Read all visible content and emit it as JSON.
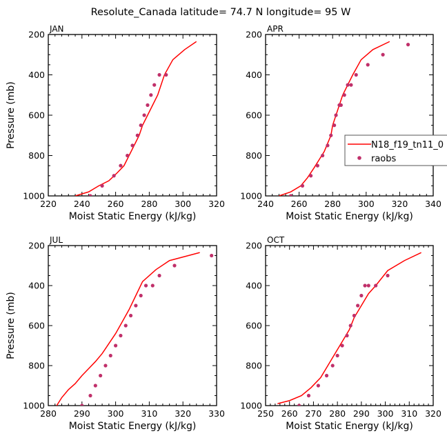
{
  "title": "Resolute_Canada   latitude= 74.7 N longitude= 95 W",
  "legend": {
    "model_label": "N18_f19_tn11_0",
    "obs_label": "raobs"
  },
  "colors": {
    "model_line": "#ff0000",
    "obs_marker": "#c0306a",
    "axis": "#000000",
    "background": "#ffffff"
  },
  "chart_data": [
    {
      "type": "line",
      "panel": "JAN",
      "xlabel": "Moist Static Energy (kJ/kg)",
      "ylabel": "Pressure (mb)",
      "xlim": [
        220,
        320
      ],
      "ylim": [
        1000,
        200
      ],
      "xticks": [
        220,
        240,
        260,
        280,
        300,
        320
      ],
      "yticks": [
        200,
        400,
        600,
        800,
        1000
      ],
      "series": [
        {
          "name": "N18_f19_tn11_0",
          "kind": "line",
          "x": [
            236,
            244,
            250,
            256,
            261,
            265,
            268,
            271,
            274,
            276,
            279,
            282,
            285,
            289,
            294,
            301,
            308
          ],
          "y": [
            1000,
            980,
            950,
            925,
            885,
            850,
            800,
            750,
            700,
            650,
            600,
            550,
            500,
            400,
            325,
            275,
            235
          ]
        },
        {
          "name": "raobs",
          "kind": "scatter",
          "x": [
            245,
            252,
            259,
            263,
            267,
            270,
            273,
            275,
            277,
            279,
            281,
            283,
            286,
            290
          ],
          "y": [
            1000,
            950,
            900,
            850,
            800,
            750,
            700,
            650,
            600,
            550,
            500,
            450,
            400,
            400
          ]
        }
      ]
    },
    {
      "type": "line",
      "panel": "APR",
      "xlabel": "Moist Static Energy (kJ/kg)",
      "ylabel": "Pressure (mb)",
      "xlim": [
        240,
        340
      ],
      "ylim": [
        1000,
        200
      ],
      "xticks": [
        240,
        260,
        280,
        300,
        320,
        340
      ],
      "yticks": [
        200,
        400,
        600,
        800,
        1000
      ],
      "series": [
        {
          "name": "N18_f19_tn11_0",
          "kind": "line",
          "x": [
            248,
            255,
            261,
            265,
            269,
            272,
            275,
            277,
            279,
            280,
            282,
            284,
            286,
            289,
            292,
            297,
            304,
            314
          ],
          "y": [
            1000,
            980,
            950,
            910,
            860,
            820,
            780,
            740,
            700,
            650,
            600,
            550,
            500,
            450,
            400,
            325,
            275,
            235
          ]
        },
        {
          "name": "raobs",
          "kind": "scatter",
          "x": [
            255,
            262,
            267,
            271,
            274,
            277,
            279,
            281,
            282,
            284,
            285,
            287,
            289,
            291,
            294,
            301,
            310,
            325
          ],
          "y": [
            1000,
            950,
            900,
            850,
            800,
            750,
            700,
            650,
            600,
            550,
            550,
            500,
            450,
            450,
            400,
            350,
            300,
            250
          ]
        }
      ]
    },
    {
      "type": "line",
      "panel": "JUL",
      "xlabel": "Moist Static Energy (kJ/kg)",
      "ylabel": "Pressure (mb)",
      "xlim": [
        280,
        330
      ],
      "ylim": [
        1000,
        200
      ],
      "xticks": [
        280,
        290,
        300,
        310,
        320,
        330
      ],
      "yticks": [
        200,
        400,
        600,
        800,
        1000
      ],
      "series": [
        {
          "name": "N18_f19_tn11_0",
          "kind": "line",
          "x": [
            282.5,
            284,
            286,
            288,
            290,
            292,
            294,
            296,
            298,
            300,
            302,
            304,
            306,
            308,
            312,
            316,
            325
          ],
          "y": [
            1000,
            960,
            920,
            890,
            850,
            815,
            780,
            740,
            690,
            640,
            580,
            520,
            450,
            380,
            320,
            275,
            235
          ]
        },
        {
          "name": "raobs",
          "kind": "scatter",
          "x": [
            290,
            292.5,
            294,
            295.5,
            297,
            298.5,
            300,
            301.5,
            303,
            304.5,
            306,
            307.5,
            309,
            311,
            313,
            317.5,
            328.5
          ],
          "y": [
            1000,
            950,
            900,
            850,
            800,
            750,
            700,
            650,
            600,
            550,
            500,
            450,
            400,
            400,
            350,
            300,
            250
          ]
        }
      ]
    },
    {
      "type": "line",
      "panel": "OCT",
      "xlabel": "Moist Static Energy (kJ/kg)",
      "ylabel": "Pressure (mb)",
      "xlim": [
        250,
        320
      ],
      "ylim": [
        1000,
        200
      ],
      "xticks": [
        250,
        260,
        270,
        280,
        290,
        300,
        310,
        320
      ],
      "yticks": [
        200,
        400,
        600,
        800,
        1000
      ],
      "series": [
        {
          "name": "N18_f19_tn11_0",
          "kind": "line",
          "x": [
            255,
            260,
            265,
            269,
            273,
            276,
            279,
            282,
            285,
            287,
            290,
            293,
            296,
            301,
            308,
            315
          ],
          "y": [
            990,
            975,
            950,
            910,
            860,
            800,
            740,
            680,
            620,
            560,
            500,
            440,
            400,
            325,
            275,
            235
          ]
        },
        {
          "name": "raobs",
          "kind": "scatter",
          "x": [
            264,
            268,
            272,
            275.5,
            278,
            280,
            282,
            284,
            285.5,
            287,
            288.5,
            290,
            291.5,
            293,
            296,
            301
          ],
          "y": [
            1000,
            950,
            900,
            850,
            800,
            750,
            700,
            650,
            600,
            550,
            500,
            450,
            400,
            400,
            400,
            350
          ]
        }
      ]
    }
  ]
}
